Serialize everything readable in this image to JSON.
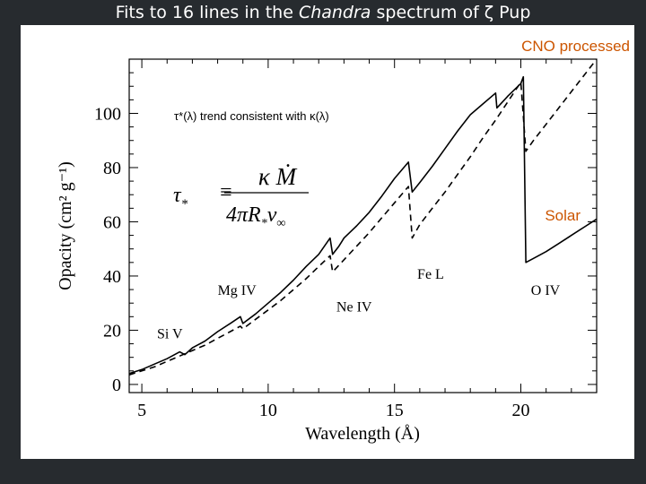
{
  "slide": {
    "title_prefix": "Fits to 16 lines in the ",
    "title_italic": "Chandra",
    "title_suffix": " spectrum of ζ Pup"
  },
  "colors": {
    "background": "#272b2f",
    "panel": "#ffffff",
    "label_accent": "#cc5500",
    "line": "#000000",
    "annotation": "#000000"
  },
  "chart_data": {
    "type": "line",
    "title": "",
    "xlabel": "Wavelength (Å)",
    "ylabel": "Opacity (cm² g⁻¹)",
    "xlim": [
      4.5,
      23.0
    ],
    "ylim": [
      -3,
      120
    ],
    "xticks": [
      5,
      10,
      15,
      20
    ],
    "yticks": [
      0,
      20,
      40,
      60,
      80,
      100
    ],
    "grid": false,
    "series": [
      {
        "name": "CNO processed",
        "style": "solid",
        "x": [
          4.5,
          5.0,
          5.5,
          6.0,
          6.5,
          6.7,
          7.0,
          7.5,
          8.0,
          8.5,
          8.9,
          9.0,
          9.5,
          10.0,
          10.5,
          11.0,
          11.5,
          12.0,
          12.45,
          12.55,
          12.8,
          13.0,
          13.5,
          14.0,
          14.5,
          15.0,
          15.55,
          15.7,
          16.0,
          16.5,
          17.0,
          17.5,
          18.0,
          18.5,
          19.0,
          19.05,
          19.4,
          19.5,
          20.0,
          20.1,
          20.2,
          20.5,
          21.0,
          21.5,
          22.0,
          22.5,
          23.0
        ],
        "y": [
          4.0,
          5.5,
          7.5,
          9.5,
          12.0,
          11.0,
          13.5,
          16.0,
          19.5,
          22.5,
          25.0,
          22.5,
          26.0,
          30.0,
          34.0,
          38.5,
          43.5,
          48.0,
          54.0,
          48.0,
          51.0,
          54.0,
          58.5,
          63.5,
          69.5,
          76.0,
          82.0,
          71.0,
          74.5,
          80.5,
          87.0,
          93.5,
          99.5,
          103.5,
          107.5,
          102.0,
          105.5,
          106.5,
          111.0,
          113.5,
          45.0,
          46.5,
          49.0,
          52.0,
          55.0,
          58.0,
          61.0
        ]
      },
      {
        "name": "Solar",
        "style": "dashed",
        "x": [
          4.5,
          5.0,
          5.5,
          6.0,
          6.5,
          7.0,
          7.5,
          8.0,
          8.5,
          8.9,
          9.0,
          9.5,
          10.0,
          10.5,
          11.0,
          11.5,
          12.0,
          12.45,
          12.55,
          13.0,
          13.5,
          14.0,
          14.5,
          15.0,
          15.55,
          15.7,
          16.0,
          16.5,
          17.0,
          17.5,
          18.0,
          18.5,
          19.0,
          19.5,
          20.0,
          20.2,
          20.5,
          21.0,
          21.5,
          22.0,
          22.5,
          23.0
        ],
        "y": [
          3.5,
          5.0,
          6.5,
          8.5,
          10.5,
          12.5,
          14.5,
          17.0,
          19.5,
          21.5,
          20.5,
          24.0,
          27.5,
          31.0,
          35.0,
          39.0,
          43.5,
          47.5,
          41.5,
          46.0,
          51.0,
          56.0,
          61.5,
          67.0,
          73.0,
          54.0,
          59.0,
          65.0,
          71.0,
          77.5,
          84.0,
          91.0,
          97.5,
          104.5,
          111.5,
          86.0,
          90.0,
          96.0,
          102.0,
          108.0,
          114.0,
          120.0
        ]
      }
    ],
    "annotations": [
      {
        "text": "Si V",
        "x": 5.6,
        "y": 17
      },
      {
        "text": "Mg IV",
        "x": 8.0,
        "y": 33
      },
      {
        "text": "Ne IV",
        "x": 12.7,
        "y": 27
      },
      {
        "text": "Fe L",
        "x": 15.9,
        "y": 39
      },
      {
        "text": "O IV",
        "x": 20.4,
        "y": 33
      }
    ],
    "series_labels": {
      "cno": "CNO processed",
      "solar": "Solar"
    },
    "inset": {
      "text": "τ*(λ) trend consistent with κ(λ)",
      "equation_lhs": "τ",
      "equation_lhs_sub": "*",
      "equation_rel": "≡",
      "numerator": "κ Ṁ",
      "denominator": "4πR",
      "denominator_sub": "*",
      "denominator_tail": "v",
      "denominator_tail_sub": "∞"
    }
  }
}
